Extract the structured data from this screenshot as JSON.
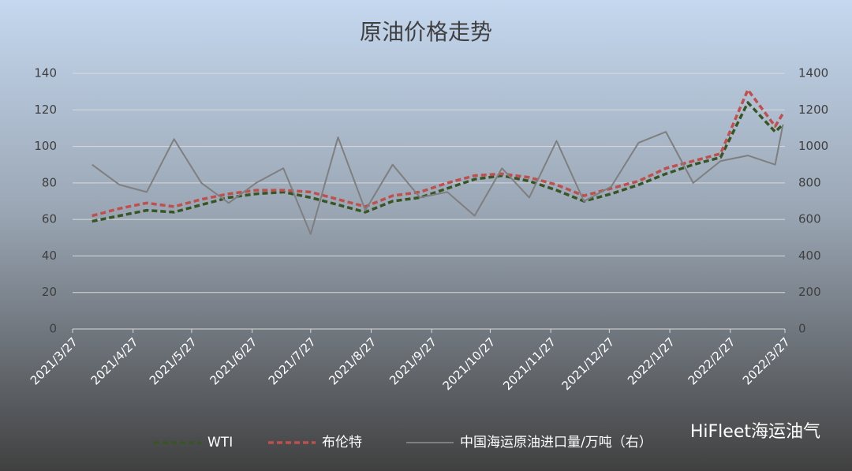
{
  "chart_data": {
    "type": "line",
    "title": "原油价格走势",
    "x": [
      "2021/4/6",
      "2021/4/20",
      "2021/5/4",
      "2021/5/18",
      "2021/6/1",
      "2021/6/15",
      "2021/6/29",
      "2021/7/13",
      "2021/7/27",
      "2021/8/10",
      "2021/8/24",
      "2021/9/7",
      "2021/9/21",
      "2021/10/5",
      "2021/10/19",
      "2021/11/2",
      "2021/11/16",
      "2021/11/30",
      "2021/12/14",
      "2021/12/28",
      "2022/1/11",
      "2022/1/25",
      "2022/2/8",
      "2022/2/22",
      "2022/3/8",
      "2022/3/22",
      "2022/3/26"
    ],
    "series": [
      {
        "name": "WTI",
        "color": "#375623",
        "dashed": true,
        "values": [
          59,
          62,
          65,
          64,
          68,
          72,
          74,
          75,
          72,
          68,
          64,
          70,
          72,
          77,
          82,
          84,
          81,
          76,
          70,
          74,
          79,
          85,
          90,
          94,
          124,
          108,
          112
        ]
      },
      {
        "name": "布伦特",
        "color": "#c0504d",
        "dashed": true,
        "values": [
          62,
          66,
          69,
          67,
          71,
          74,
          76,
          76,
          75,
          71,
          67,
          73,
          75,
          80,
          84,
          85,
          83,
          79,
          73,
          77,
          81,
          88,
          92,
          96,
          131,
          111,
          118
        ]
      },
      {
        "name": "中国海运原油进口量/万吨（右）",
        "color": "#7f7f7f",
        "dashed": false,
        "axis": "y2",
        "values": [
          900,
          790,
          750,
          1040,
          800,
          690,
          800,
          880,
          520,
          1050,
          650,
          900,
          720,
          750,
          620,
          880,
          720,
          1030,
          700,
          780,
          1020,
          1080,
          800,
          920,
          950,
          900,
          1120
        ]
      }
    ],
    "xlim": [
      "2021/3/27",
      "2022/3/27"
    ],
    "xticks": [
      "2021/3/27",
      "2021/4/27",
      "2021/5/27",
      "2021/6/27",
      "2021/7/27",
      "2021/8/27",
      "2021/9/27",
      "2021/10/27",
      "2021/11/27",
      "2021/12/27",
      "2022/1/27",
      "2022/2/27",
      "2022/3/27"
    ],
    "ylim": [
      0,
      140
    ],
    "yticks": [
      0,
      20,
      40,
      60,
      80,
      100,
      120,
      140
    ],
    "y2lim": [
      0,
      1400
    ],
    "y2ticks": [
      0,
      200,
      400,
      600,
      800,
      1000,
      1200,
      1400
    ],
    "grid": true,
    "legend": "bottom",
    "watermark": "HiFleet海运油气"
  }
}
